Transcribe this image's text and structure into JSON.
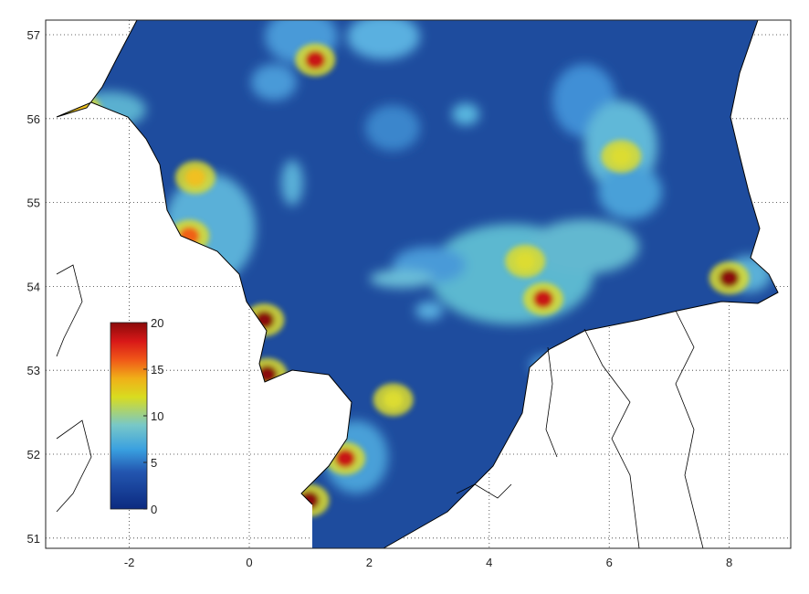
{
  "chart_data": {
    "type": "heatmap",
    "title": "",
    "xlabel": "",
    "ylabel": "",
    "xlim": [
      -3.4,
      9.0
    ],
    "ylim": [
      50.9,
      57.17
    ],
    "x_ticks": [
      "-2",
      "0",
      "2",
      "4",
      "6",
      "8"
    ],
    "y_ticks": [
      "51",
      "52",
      "53",
      "54",
      "55",
      "56",
      "57"
    ],
    "grid": true,
    "colorbar": {
      "range": [
        0,
        20
      ],
      "ticks": [
        "0",
        "5",
        "10",
        "15",
        "20"
      ],
      "colormap": "jet",
      "placement": "inside-left"
    },
    "hotspots": [
      {
        "lon": 1.1,
        "lat": 56.7,
        "value": 18
      },
      {
        "lon": -0.9,
        "lat": 55.3,
        "value": 14
      },
      {
        "lon": -1.0,
        "lat": 54.6,
        "value": 16
      },
      {
        "lon": 0.25,
        "lat": 53.6,
        "value": 19
      },
      {
        "lon": 0.3,
        "lat": 52.95,
        "value": 20
      },
      {
        "lon": 1.6,
        "lat": 51.95,
        "value": 18
      },
      {
        "lon": 1.0,
        "lat": 51.45,
        "value": 20
      },
      {
        "lon": 4.9,
        "lat": 53.85,
        "value": 17
      },
      {
        "lon": 4.6,
        "lat": 54.3,
        "value": 12
      },
      {
        "lon": 6.2,
        "lat": 55.55,
        "value": 11
      },
      {
        "lon": 8.0,
        "lat": 54.1,
        "value": 20
      },
      {
        "lon": 2.4,
        "lat": 52.65,
        "value": 12
      },
      {
        "lon": -2.8,
        "lat": 56.1,
        "value": 14
      }
    ]
  },
  "colors": {
    "ocean": "#1e4c9e",
    "land": "#ffffff",
    "coast": "#000000"
  }
}
